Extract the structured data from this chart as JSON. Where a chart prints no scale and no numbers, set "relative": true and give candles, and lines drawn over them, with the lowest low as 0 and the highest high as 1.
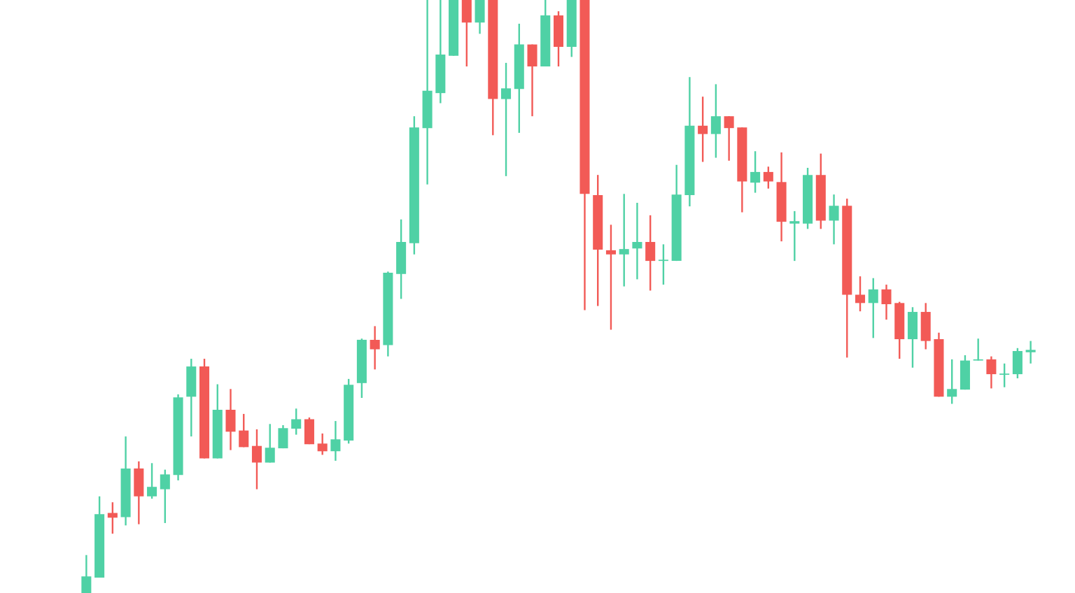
{
  "chart_data": {
    "type": "candlestick",
    "relative": true,
    "categories": [
      null,
      null,
      null,
      null,
      null,
      null,
      null,
      null,
      null,
      null,
      null,
      null,
      null,
      null,
      null,
      null,
      null,
      null,
      null,
      null,
      null,
      null,
      null,
      null,
      null,
      null,
      null,
      null,
      null,
      null,
      null,
      null,
      null,
      null,
      null,
      null,
      null,
      null,
      null,
      null,
      null,
      null,
      null,
      null,
      null,
      null,
      null,
      null,
      null,
      null,
      null,
      null,
      null,
      null,
      null,
      null,
      null,
      null,
      null,
      null,
      null,
      null,
      null,
      null,
      null,
      null,
      null,
      null,
      null,
      null,
      null,
      null,
      null
    ],
    "ohlc": [
      [
        0,
        0.064,
        0,
        0.028
      ],
      [
        0.026,
        0.163,
        0.026,
        0.133
      ],
      [
        0.135,
        0.153,
        0.1,
        0.127
      ],
      [
        0.128,
        0.264,
        0.114,
        0.21
      ],
      [
        0.21,
        0.222,
        0.116,
        0.163
      ],
      [
        0.163,
        0.219,
        0.159,
        0.179
      ],
      [
        0.175,
        0.208,
        0.118,
        0.2
      ],
      [
        0.199,
        0.335,
        0.19,
        0.33
      ],
      [
        0.331,
        0.395,
        0.264,
        0.382
      ],
      [
        0.382,
        0.395,
        0.227,
        0.227
      ],
      [
        0.227,
        0.352,
        0.227,
        0.309
      ],
      [
        0.309,
        0.344,
        0.241,
        0.272
      ],
      [
        0.274,
        0.302,
        0.246,
        0.246
      ],
      [
        0.248,
        0.276,
        0.175,
        0.22
      ],
      [
        0.22,
        0.285,
        0.22,
        0.245
      ],
      [
        0.244,
        0.283,
        0.244,
        0.278
      ],
      [
        0.277,
        0.311,
        0.267,
        0.293
      ],
      [
        0.293,
        0.296,
        0.251,
        0.251
      ],
      [
        0.252,
        0.269,
        0.233,
        0.239
      ],
      [
        0.239,
        0.29,
        0.223,
        0.259
      ],
      [
        0.257,
        0.361,
        0.252,
        0.351
      ],
      [
        0.354,
        0.429,
        0.329,
        0.427
      ],
      [
        0.427,
        0.45,
        0.377,
        0.411
      ],
      [
        0.418,
        0.542,
        0.399,
        0.54
      ],
      [
        0.538,
        0.63,
        0.496,
        0.592
      ],
      [
        0.59,
        0.804,
        0.571,
        0.785
      ],
      [
        0.784,
        1,
        0.689,
        0.847
      ],
      [
        0.843,
        1,
        0.826,
        0.908
      ],
      [
        0.906,
        1,
        0.906,
        1
      ],
      [
        1,
        1,
        0.888,
        0.962
      ],
      [
        0.962,
        1,
        0.943,
        1
      ],
      [
        1,
        1,
        0.772,
        0.833
      ],
      [
        0.833,
        0.894,
        0.703,
        0.851
      ],
      [
        0.85,
        0.96,
        0.776,
        0.925
      ],
      [
        0.925,
        0.925,
        0.804,
        0.888
      ],
      [
        0.888,
        1,
        0.888,
        0.974
      ],
      [
        0.974,
        0.981,
        0.888,
        0.921
      ],
      [
        0.921,
        1,
        0.904,
        1
      ],
      [
        1,
        1,
        0.477,
        0.673
      ],
      [
        0.671,
        0.705,
        0.484,
        0.579
      ],
      [
        0.578,
        0.621,
        0.444,
        0.571
      ],
      [
        0.571,
        0.673,
        0.517,
        0.58
      ],
      [
        0.581,
        0.658,
        0.529,
        0.592
      ],
      [
        0.592,
        0.637,
        0.51,
        0.56
      ],
      [
        0.56,
        0.588,
        0.52,
        0.562
      ],
      [
        0.56,
        0.722,
        0.56,
        0.672
      ],
      [
        0.671,
        0.87,
        0.652,
        0.788
      ],
      [
        0.788,
        0.837,
        0.727,
        0.774
      ],
      [
        0.774,
        0.858,
        0.734,
        0.804
      ],
      [
        0.804,
        0.804,
        0.729,
        0.784
      ],
      [
        0.785,
        0.785,
        0.642,
        0.694
      ],
      [
        0.692,
        0.745,
        0.675,
        0.71
      ],
      [
        0.71,
        0.719,
        0.682,
        0.694
      ],
      [
        0.693,
        0.743,
        0.593,
        0.626
      ],
      [
        0.623,
        0.644,
        0.56,
        0.627
      ],
      [
        0.623,
        0.717,
        0.614,
        0.705
      ],
      [
        0.705,
        0.741,
        0.614,
        0.628
      ],
      [
        0.628,
        0.672,
        0.588,
        0.653
      ],
      [
        0.653,
        0.665,
        0.397,
        0.503
      ],
      [
        0.503,
        0.534,
        0.475,
        0.489
      ],
      [
        0.489,
        0.531,
        0.43,
        0.512
      ],
      [
        0.512,
        0.52,
        0.461,
        0.487
      ],
      [
        0.489,
        0.491,
        0.395,
        0.428
      ],
      [
        0.428,
        0.482,
        0.38,
        0.474
      ],
      [
        0.474,
        0.489,
        0.411,
        0.425
      ],
      [
        0.428,
        0.439,
        0.331,
        0.331
      ],
      [
        0.331,
        0.394,
        0.319,
        0.344
      ],
      [
        0.343,
        0.401,
        0.343,
        0.392
      ],
      [
        0.392,
        0.429,
        0.392,
        0.394
      ],
      [
        0.394,
        0.399,
        0.345,
        0.369
      ],
      [
        0.368,
        0.387,
        0.347,
        0.37
      ],
      [
        0.369,
        0.413,
        0.362,
        0.408
      ],
      [
        0.406,
        0.425,
        0.387,
        0.41
      ]
    ],
    "colors": [
      "#4fd1a5",
      "#4fd1a5",
      "#f25a56",
      "#4fd1a5",
      "#f25a56",
      "#4fd1a5",
      "#4fd1a5",
      "#4fd1a5",
      "#4fd1a5",
      "#f25a56",
      "#4fd1a5",
      "#f25a56",
      "#f25a56",
      "#f25a56",
      "#4fd1a5",
      "#4fd1a5",
      "#4fd1a5",
      "#f25a56",
      "#f25a56",
      "#4fd1a5",
      "#4fd1a5",
      "#4fd1a5",
      "#f25a56",
      "#4fd1a5",
      "#4fd1a5",
      "#4fd1a5",
      "#4fd1a5",
      "#4fd1a5",
      "#4fd1a5",
      "#f25a56",
      "#4fd1a5",
      "#f25a56",
      "#4fd1a5",
      "#4fd1a5",
      "#f25a56",
      "#4fd1a5",
      "#f25a56",
      "#4fd1a5",
      "#f25a56",
      "#f25a56",
      "#f25a56",
      "#4fd1a5",
      "#4fd1a5",
      "#f25a56",
      "#4fd1a5",
      "#4fd1a5",
      "#4fd1a5",
      "#f25a56",
      "#4fd1a5",
      "#f25a56",
      "#f25a56",
      "#4fd1a5",
      "#f25a56",
      "#f25a56",
      "#4fd1a5",
      "#4fd1a5",
      "#f25a56",
      "#4fd1a5",
      "#f25a56",
      "#f25a56",
      "#4fd1a5",
      "#f25a56",
      "#f25a56",
      "#4fd1a5",
      "#f25a56",
      "#f25a56",
      "#4fd1a5",
      "#4fd1a5",
      "#4fd1a5",
      "#f25a56",
      "#4fd1a5",
      "#4fd1a5",
      "#4fd1a5"
    ]
  }
}
